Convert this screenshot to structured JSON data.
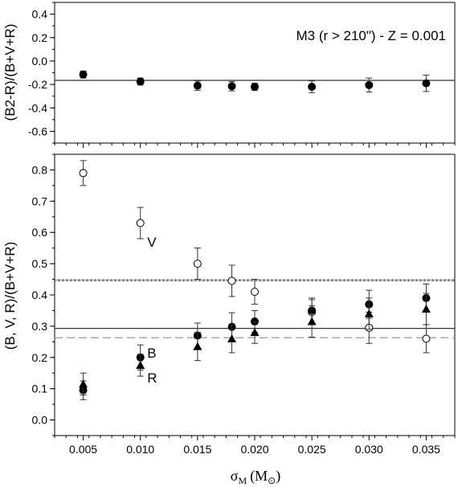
{
  "chart_data": [
    {
      "type": "scatter",
      "annotation": "M3 (r > 210\") - Z = 0.001",
      "ylabel": "(B2-R)/(B+V+R)",
      "xlim": [
        0.0025,
        0.0375
      ],
      "ylim": [
        -0.7,
        0.5
      ],
      "yticks": [
        "0.4",
        "0.2",
        "0.0",
        "-0.2",
        "-0.4",
        "-0.6"
      ],
      "grid": false,
      "series": [
        {
          "marker": "filled-circle",
          "points": [
            {
              "x": 0.005,
              "y": -0.115,
              "err": 0.03
            },
            {
              "x": 0.01,
              "y": -0.175,
              "err": 0.03
            },
            {
              "x": 0.015,
              "y": -0.21,
              "err": 0.04
            },
            {
              "x": 0.018,
              "y": -0.215,
              "err": 0.04
            },
            {
              "x": 0.02,
              "y": -0.22,
              "err": 0.03
            },
            {
              "x": 0.025,
              "y": -0.22,
              "err": 0.05
            },
            {
              "x": 0.03,
              "y": -0.205,
              "err": 0.06
            },
            {
              "x": 0.035,
              "y": -0.19,
              "err": 0.07
            }
          ]
        }
      ],
      "hlines": [
        {
          "y": -0.165,
          "style": "solid"
        }
      ]
    },
    {
      "type": "scatter",
      "xlabel_main": "σ",
      "xlabel_sub": "M",
      "xlabel_unit_main": "(M",
      "xlabel_unit_sub": "⊙",
      "xlabel_close": ")",
      "ylabel": "(B, V, R)/(B+V+R)",
      "xlim": [
        0.0025,
        0.0375
      ],
      "ylim": [
        -0.05,
        0.85
      ],
      "xticks": [
        "0.005",
        "0.010",
        "0.015",
        "0.020",
        "0.025",
        "0.030",
        "0.035"
      ],
      "yticks": [
        "0.8",
        "0.7",
        "0.6",
        "0.5",
        "0.4",
        "0.3",
        "0.2",
        "0.1",
        "0.0"
      ],
      "grid": false,
      "labels": [
        {
          "text": "V",
          "x": 0.0106,
          "y": 0.57
        },
        {
          "text": "B",
          "x": 0.0106,
          "y": 0.215
        },
        {
          "text": "R",
          "x": 0.0106,
          "y": 0.135
        }
      ],
      "series": [
        {
          "marker": "open-circle",
          "points": [
            {
              "x": 0.005,
              "y": 0.79,
              "err": 0.04
            },
            {
              "x": 0.01,
              "y": 0.63,
              "err": 0.05
            },
            {
              "x": 0.015,
              "y": 0.5,
              "err": 0.05
            },
            {
              "x": 0.018,
              "y": 0.445,
              "err": 0.05
            },
            {
              "x": 0.02,
              "y": 0.41,
              "err": 0.04
            },
            {
              "x": 0.025,
              "y": 0.345,
              "err": 0.04
            },
            {
              "x": 0.03,
              "y": 0.295,
              "err": 0.05
            },
            {
              "x": 0.035,
              "y": 0.26,
              "err": 0.045
            }
          ]
        },
        {
          "marker": "filled-circle",
          "points": [
            {
              "x": 0.005,
              "y": 0.095,
              "err": 0.03
            },
            {
              "x": 0.01,
              "y": 0.2,
              "err": 0.04
            },
            {
              "x": 0.015,
              "y": 0.27,
              "err": 0.04
            },
            {
              "x": 0.018,
              "y": 0.298,
              "err": 0.045
            },
            {
              "x": 0.02,
              "y": 0.315,
              "err": 0.035
            },
            {
              "x": 0.025,
              "y": 0.35,
              "err": 0.04
            },
            {
              "x": 0.03,
              "y": 0.37,
              "err": 0.045
            },
            {
              "x": 0.035,
              "y": 0.39,
              "err": 0.045
            }
          ]
        },
        {
          "marker": "filled-triangle",
          "points": [
            {
              "x": 0.005,
              "y": 0.115,
              "err": 0.035
            },
            {
              "x": 0.01,
              "y": 0.175,
              "err": 0.035
            },
            {
              "x": 0.015,
              "y": 0.235,
              "err": 0.045
            },
            {
              "x": 0.018,
              "y": 0.26,
              "err": 0.045
            },
            {
              "x": 0.02,
              "y": 0.28,
              "err": 0.035
            },
            {
              "x": 0.025,
              "y": 0.315,
              "err": 0.05
            },
            {
              "x": 0.03,
              "y": 0.34,
              "err": 0.05
            },
            {
              "x": 0.035,
              "y": 0.355,
              "err": 0.05
            }
          ]
        }
      ],
      "hlines": [
        {
          "y": 0.447,
          "style": "dotted",
          "color": "#888888"
        },
        {
          "y": 0.293,
          "style": "solid",
          "color": "#333333"
        },
        {
          "y": 0.263,
          "style": "dashed",
          "color": "#999999"
        }
      ]
    }
  ]
}
